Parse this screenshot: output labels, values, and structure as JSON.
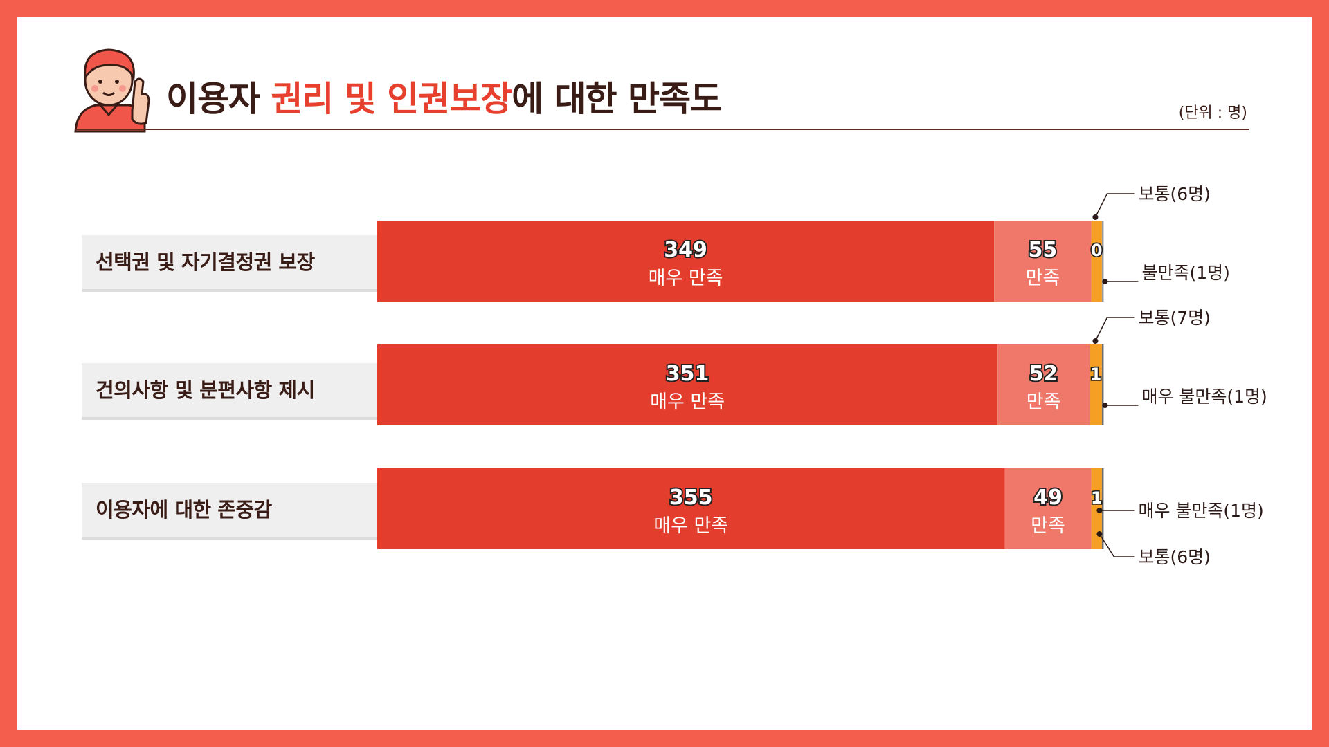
{
  "title": {
    "pre": "이용자 ",
    "highlight": "권리 및 인권보장",
    "post": "에 대한 만족도"
  },
  "unit": "(단위 : 명)",
  "colors": {
    "very_satisfied": "#E33D2E",
    "satisfied": "#F0786B",
    "normal": "#F5A024",
    "dissatisfied": "#9A9A9A",
    "very_dissatisfied": "#6E6E6E",
    "background": "#F45E4D"
  },
  "icons": {
    "avatar": "waving-person-icon"
  },
  "chart_data": {
    "type": "bar",
    "orientation": "horizontal",
    "stacked": true,
    "categories": [
      "선택권 및 자기결정권 보장",
      "건의사항 및 분편사항 제시",
      "이용자에 대한 존중감"
    ],
    "series": [
      {
        "name": "매우 만족",
        "values": [
          349,
          351,
          355
        ]
      },
      {
        "name": "만족",
        "values": [
          55,
          52,
          49
        ]
      },
      {
        "name": "보통",
        "values": [
          6,
          7,
          6
        ]
      },
      {
        "name": "불만족",
        "values": [
          1,
          0,
          0
        ]
      },
      {
        "name": "매우 불만족",
        "values": [
          0,
          1,
          1
        ]
      }
    ],
    "inline_small_labels": [
      "0",
      "1",
      "1"
    ],
    "callouts": [
      [
        "보통(6명)",
        "불만족(1명)"
      ],
      [
        "보통(7명)",
        "매우 불만족(1명)"
      ],
      [
        "매우 불만족(1명)",
        "보통(6명)"
      ]
    ],
    "grid": false,
    "legend": "none"
  }
}
